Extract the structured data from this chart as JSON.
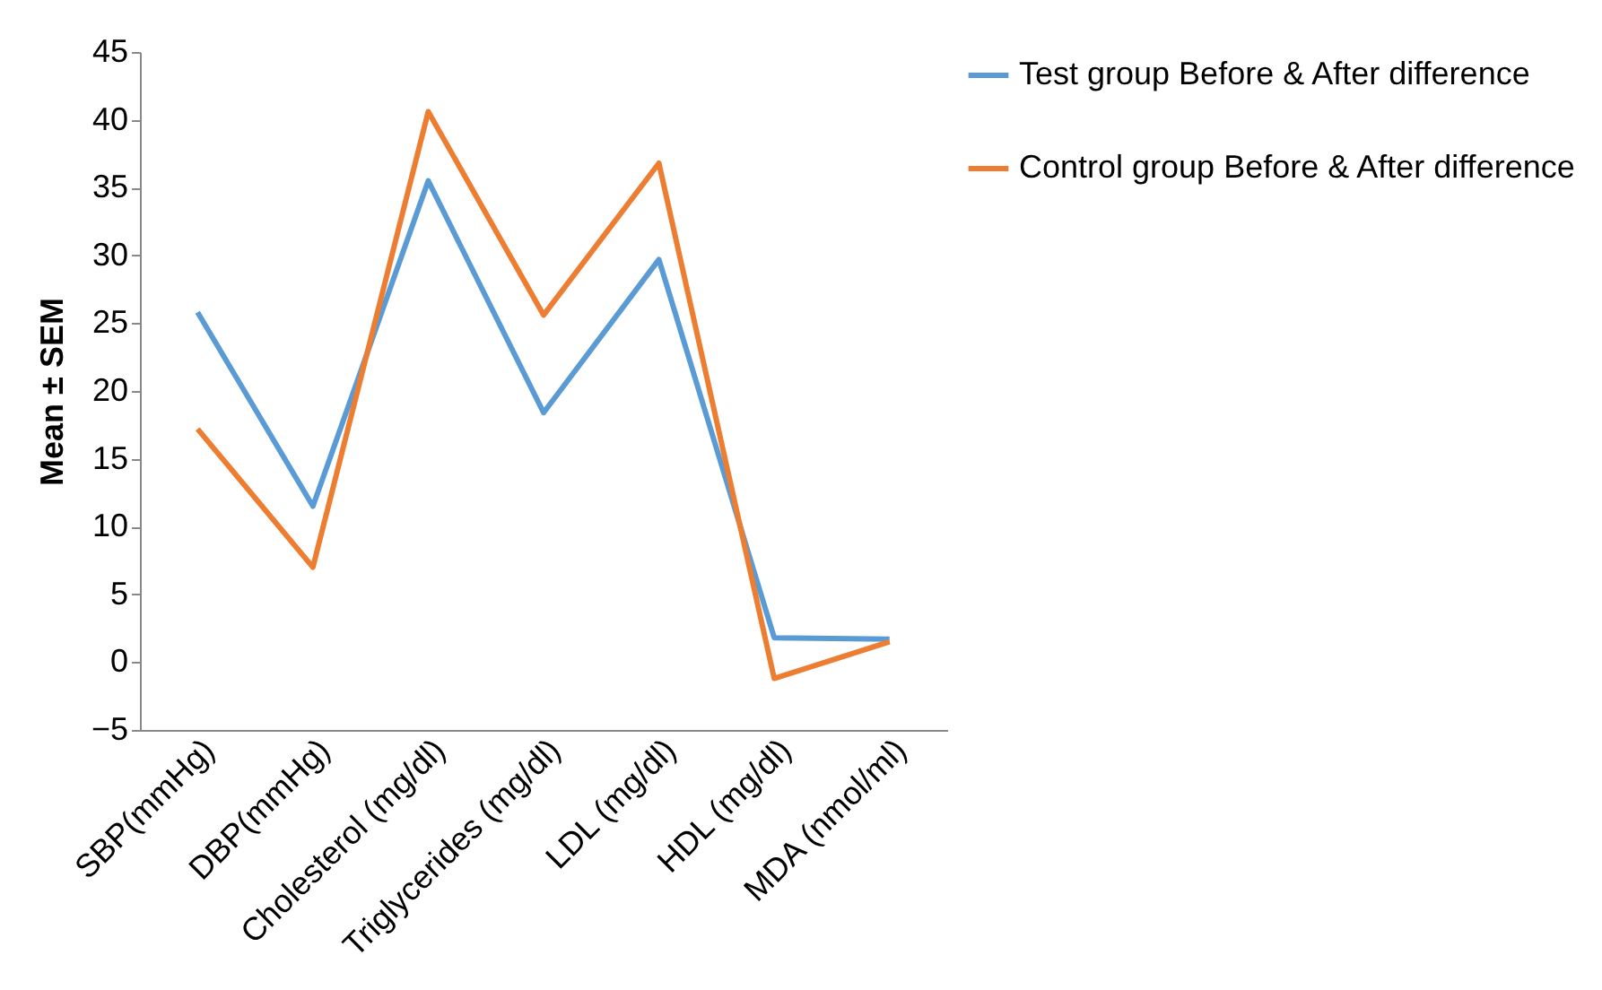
{
  "chart_data": {
    "type": "line",
    "ylabel": "Mean ± SEM",
    "categories": [
      "SBP(mmHg)",
      "DBP(mmHg)",
      "Cholesterol (mg/dl)",
      "Triglycerides (mg/dl)",
      "LDL (mg/dl)",
      "HDL (mg/dl)",
      "MDA (nmol/ml)"
    ],
    "series": [
      {
        "name": "Test group Before & After difference",
        "color": "#5b9bd5",
        "values": [
          25.8,
          11.5,
          35.5,
          18.4,
          29.7,
          1.8,
          1.7
        ]
      },
      {
        "name": "Control group Before & After difference",
        "color": "#ed7d31",
        "values": [
          17.2,
          7,
          40.6,
          25.6,
          36.8,
          -1.2,
          1.5
        ]
      }
    ],
    "ylim": [
      -5,
      45
    ],
    "yticks": [
      -5,
      0,
      5,
      10,
      15,
      20,
      25,
      30,
      35,
      40,
      45
    ],
    "grid": false,
    "legend": "right",
    "marker": "none",
    "line_style": "solid"
  }
}
